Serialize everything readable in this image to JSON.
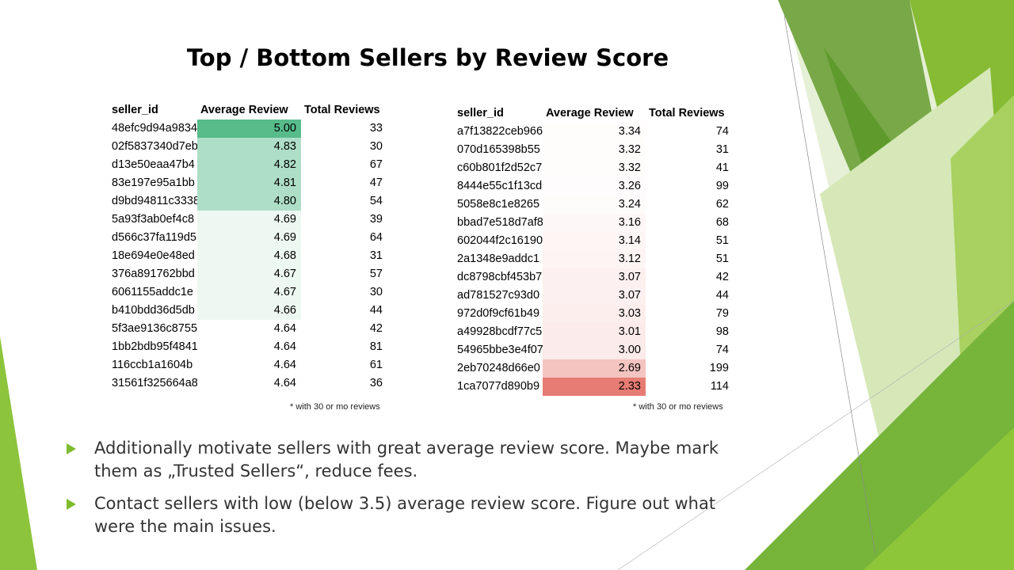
{
  "slide": {
    "title": "Top / Bottom Sellers by Review Score",
    "bullets": [
      "Additionally motivate sellers with great average review score. Maybe mark them as „Trusted Sellers“, reduce fees.",
      "Contact sellers with low (below 3.5) average review score. Figure out what were the main issues."
    ]
  },
  "colors": {
    "accent_green": "#7fbd2e",
    "top_cell_max": "#57bb8a",
    "bottom_cell_min": "#e67c73"
  },
  "top_table": {
    "headers": [
      "seller_id",
      "Average Review",
      "Total Reviews"
    ],
    "note": "* with 30 or mo reviews",
    "rows": [
      {
        "seller_id": "48efc9d94a9834",
        "avg": "5.00",
        "total": "33"
      },
      {
        "seller_id": "02f5837340d7eb",
        "avg": "4.83",
        "total": "30"
      },
      {
        "seller_id": "d13e50eaa47b4",
        "avg": "4.82",
        "total": "67"
      },
      {
        "seller_id": "83e197e95a1bb",
        "avg": "4.81",
        "total": "47"
      },
      {
        "seller_id": "d9bd94811c3338",
        "avg": "4.80",
        "total": "54"
      },
      {
        "seller_id": "5a93f3ab0ef4c8",
        "avg": "4.69",
        "total": "39"
      },
      {
        "seller_id": "d566c37fa119d5",
        "avg": "4.69",
        "total": "64"
      },
      {
        "seller_id": "18e694e0e48ed",
        "avg": "4.68",
        "total": "31"
      },
      {
        "seller_id": "376a891762bbd",
        "avg": "4.67",
        "total": "57"
      },
      {
        "seller_id": "6061155addc1e",
        "avg": "4.67",
        "total": "30"
      },
      {
        "seller_id": "b410bdd36d5db",
        "avg": "4.66",
        "total": "44"
      },
      {
        "seller_id": "5f3ae9136c8755",
        "avg": "4.64",
        "total": "42"
      },
      {
        "seller_id": "1bb2bdb95f4841",
        "avg": "4.64",
        "total": "81"
      },
      {
        "seller_id": "116ccb1a1604b",
        "avg": "4.64",
        "total": "61"
      },
      {
        "seller_id": "31561f325664a8",
        "avg": "4.64",
        "total": "36"
      }
    ]
  },
  "bottom_table": {
    "headers": [
      "seller_id",
      "Average Review",
      "Total Reviews"
    ],
    "note": "* with 30 or mo reviews",
    "rows": [
      {
        "seller_id": "a7f13822ceb966",
        "avg": "3.34",
        "total": "74"
      },
      {
        "seller_id": "070d165398b55",
        "avg": "3.32",
        "total": "31"
      },
      {
        "seller_id": "c60b801f2d52c7",
        "avg": "3.32",
        "total": "41"
      },
      {
        "seller_id": "8444e55c1f13cd",
        "avg": "3.26",
        "total": "99"
      },
      {
        "seller_id": "5058e8c1e8265",
        "avg": "3.24",
        "total": "62"
      },
      {
        "seller_id": "bbad7e518d7af8",
        "avg": "3.16",
        "total": "68"
      },
      {
        "seller_id": "602044f2c16190",
        "avg": "3.14",
        "total": "51"
      },
      {
        "seller_id": "2a1348e9addc1",
        "avg": "3.12",
        "total": "51"
      },
      {
        "seller_id": "dc8798cbf453b7",
        "avg": "3.07",
        "total": "42"
      },
      {
        "seller_id": "ad781527c93d0",
        "avg": "3.07",
        "total": "44"
      },
      {
        "seller_id": "972d0f9cf61b49",
        "avg": "3.03",
        "total": "79"
      },
      {
        "seller_id": "a49928bcdf77c5",
        "avg": "3.01",
        "total": "98"
      },
      {
        "seller_id": "54965bbe3e4f07",
        "avg": "3.00",
        "total": "74"
      },
      {
        "seller_id": "2eb70248d66e0",
        "avg": "2.69",
        "total": "199"
      },
      {
        "seller_id": "1ca7077d890b9",
        "avg": "2.33",
        "total": "114"
      }
    ]
  }
}
